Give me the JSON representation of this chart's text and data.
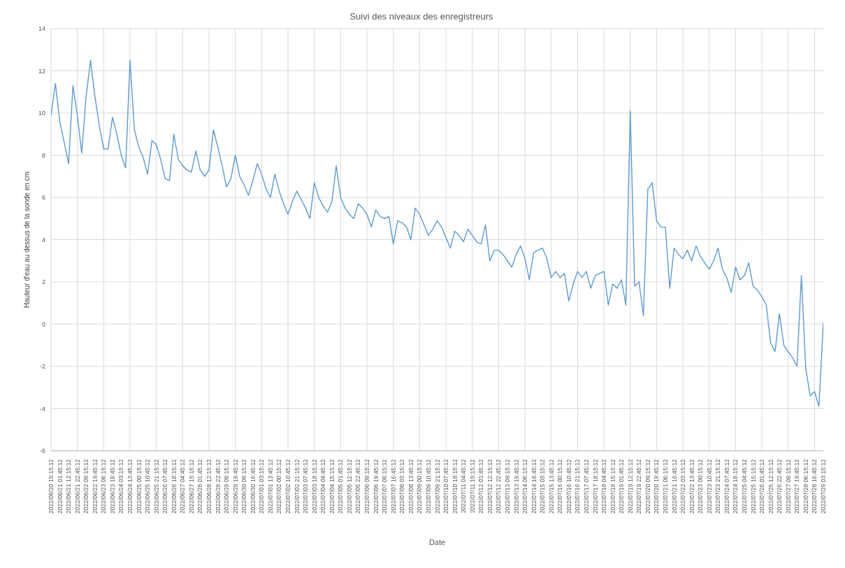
{
  "chart_data": {
    "type": "line",
    "title": "Suivi des niveaux des enregistreurs",
    "xlabel": "Date",
    "ylabel": "Hauteur d'eau au dessus de la sonde en cm",
    "categories": [
      "2022/06/20 15:15:12",
      null,
      "2022/06/21 01:45:12",
      null,
      "2022/06/21 12:15:12",
      null,
      "2022/06/21 22:45:12",
      null,
      "2022/06/22 09:15:12",
      null,
      "2022/06/22 19:45:12",
      null,
      "2022/06/23 06:15:12",
      null,
      "2022/06/23 16:45:12",
      null,
      "2022/06/24 03:15:12",
      null,
      "2022/06/24 13:45:12",
      null,
      "2022/06/25 00:15:12",
      null,
      "2022/06/25 10:45:12",
      null,
      "2022/06/25 21:15:12",
      null,
      "2022/06/26 07:45:12",
      null,
      "2022/06/26 18:15:12",
      null,
      "2022/06/27 04:45:12",
      null,
      "2022/06/27 15:15:12",
      null,
      "2022/06/28 01:45:12",
      null,
      "2022/06/28 12:15:12",
      null,
      "2022/06/28 22:45:12",
      null,
      "2022/06/29 09:15:12",
      null,
      "2022/06/29 19:45:12",
      null,
      "2022/06/30 06:15:12",
      null,
      "2022/06/30 16:45:12",
      null,
      "2022/07/01 03:15:12",
      null,
      "2022/07/01 13:45:12",
      null,
      "2022/07/02 00:15:12",
      null,
      "2022/07/02 10:45:12",
      null,
      "2022/07/02 21:15:12",
      null,
      "2022/07/03 07:45:12",
      null,
      "2022/07/03 18:15:12",
      null,
      "2022/07/04 04:45:12",
      null,
      "2022/07/04 15:15:12",
      null,
      "2022/07/05 01:45:12",
      null,
      "2022/07/05 12:15:12",
      null,
      "2022/07/05 22:45:12",
      null,
      "2022/07/06 09:15:12",
      null,
      "2022/07/06 19:45:12",
      null,
      "2022/07/07 06:15:12",
      null,
      "2022/07/07 16:45:12",
      null,
      "2022/07/08 03:15:12",
      null,
      "2022/07/08 13:45:12",
      null,
      "2022/07/09 00:15:12",
      null,
      "2022/07/09 10:45:12",
      null,
      "2022/07/09 21:15:12",
      null,
      "2022/07/10 07:45:12",
      null,
      "2022/07/10 18:15:12",
      null,
      "2022/07/11 04:45:12",
      null,
      "2022/07/11 15:15:12",
      null,
      "2022/07/12 01:45:12",
      null,
      "2022/07/12 12:15:12",
      null,
      "2022/07/12 22:45:12",
      null,
      "2022/07/13 09:15:12",
      null,
      "2022/07/13 19:45:12",
      null,
      "2022/07/14 06:15:12",
      null,
      "2022/07/14 16:45:12",
      null,
      "2022/07/15 03:15:12",
      null,
      "2022/07/15 13:45:12",
      null,
      "2022/07/16 00:15:12",
      null,
      "2022/07/16 10:45:12",
      null,
      "2022/07/16 21:15:12",
      null,
      "2022/07/17 07:45:12",
      null,
      "2022/07/17 18:15:12",
      null,
      "2022/07/18 04:45:12",
      null,
      "2022/07/18 15:15:12",
      null,
      "2022/07/19 01:45:12",
      null,
      "2022/07/19 12:15:12",
      null,
      "2022/07/19 22:45:12",
      null,
      "2022/07/20 09:15:12",
      null,
      "2022/07/20 19:45:12",
      null,
      "2022/07/21 06:15:12",
      null,
      "2022/07/21 16:45:12",
      null,
      "2022/07/22 03:15:12",
      null,
      "2022/07/22 13:45:12",
      null,
      "2022/07/23 00:15:12",
      null,
      "2022/07/23 10:45:12",
      null,
      "2022/07/23 21:15:12",
      null,
      "2022/07/24 07:45:12",
      null,
      "2022/07/24 18:15:12",
      null,
      "2022/07/25 04:45:12",
      null,
      "2022/07/25 15:15:12",
      null,
      "2022/07/26 01:45:12",
      null,
      "2022/07/26 12:15:12",
      null,
      "2022/07/26 22:45:12",
      null,
      "2022/07/27 09:15:12",
      null,
      "2022/07/27 19:45:12",
      null,
      "2022/07/28 06:15:12",
      null,
      "2022/07/28 16:45:12",
      null,
      "2022/07/29 03:15:12"
    ],
    "series": [
      {
        "color": "#5b9bd5",
        "values": [
          9.9,
          11.4,
          9.6,
          8.6,
          7.6,
          11.3,
          9.9,
          8.1,
          10.8,
          12.5,
          10.8,
          9.4,
          8.3,
          8.3,
          9.8,
          9.0,
          8.0,
          7.4,
          12.5,
          9.2,
          8.4,
          7.9,
          7.1,
          8.7,
          8.5,
          7.8,
          6.9,
          6.8,
          9.0,
          7.8,
          7.5,
          7.3,
          7.2,
          8.2,
          7.3,
          7.0,
          7.3,
          9.2,
          8.4,
          7.5,
          6.5,
          6.9,
          8.0,
          7.0,
          6.6,
          6.1,
          6.8,
          7.6,
          7.1,
          6.4,
          6.0,
          7.1,
          6.3,
          5.7,
          5.2,
          5.8,
          6.3,
          5.9,
          5.5,
          5.0,
          6.7,
          6.0,
          5.6,
          5.3,
          5.8,
          7.5,
          6.0,
          5.5,
          5.2,
          5.0,
          5.7,
          5.5,
          5.2,
          4.6,
          5.4,
          5.1,
          5.0,
          5.1,
          3.8,
          4.9,
          4.8,
          4.6,
          4.0,
          5.5,
          5.2,
          4.7,
          4.2,
          4.5,
          4.9,
          4.6,
          4.1,
          3.6,
          4.4,
          4.2,
          3.9,
          4.5,
          4.2,
          3.9,
          3.8,
          4.7,
          3.0,
          3.5,
          3.5,
          3.3,
          3.0,
          2.7,
          3.3,
          3.7,
          3.1,
          2.1,
          3.4,
          3.5,
          3.6,
          3.1,
          2.2,
          2.5,
          2.2,
          2.4,
          1.1,
          1.9,
          2.5,
          2.2,
          2.5,
          1.7,
          2.3,
          2.4,
          2.5,
          0.9,
          1.9,
          1.7,
          2.1,
          0.9,
          10.1,
          1.8,
          2.0,
          0.4,
          6.4,
          6.7,
          4.9,
          4.6,
          4.6,
          1.7,
          3.6,
          3.3,
          3.1,
          3.5,
          3.0,
          3.7,
          3.2,
          2.9,
          2.6,
          3.0,
          3.6,
          2.6,
          2.2,
          1.5,
          2.7,
          2.1,
          2.3,
          2.9,
          1.8,
          1.6,
          1.3,
          0.9,
          -0.9,
          -1.3,
          0.5,
          -1.0,
          -1.3,
          -1.6,
          -2.0,
          2.3,
          -2.1,
          -3.4,
          -3.2,
          -3.9,
          0.1
        ]
      }
    ],
    "ylim": [
      -6,
      14
    ],
    "yticks": [
      -6,
      -4,
      -2,
      0,
      2,
      4,
      6,
      8,
      10,
      12,
      14
    ],
    "grid": true,
    "marker": "none",
    "line_style": "solid"
  }
}
